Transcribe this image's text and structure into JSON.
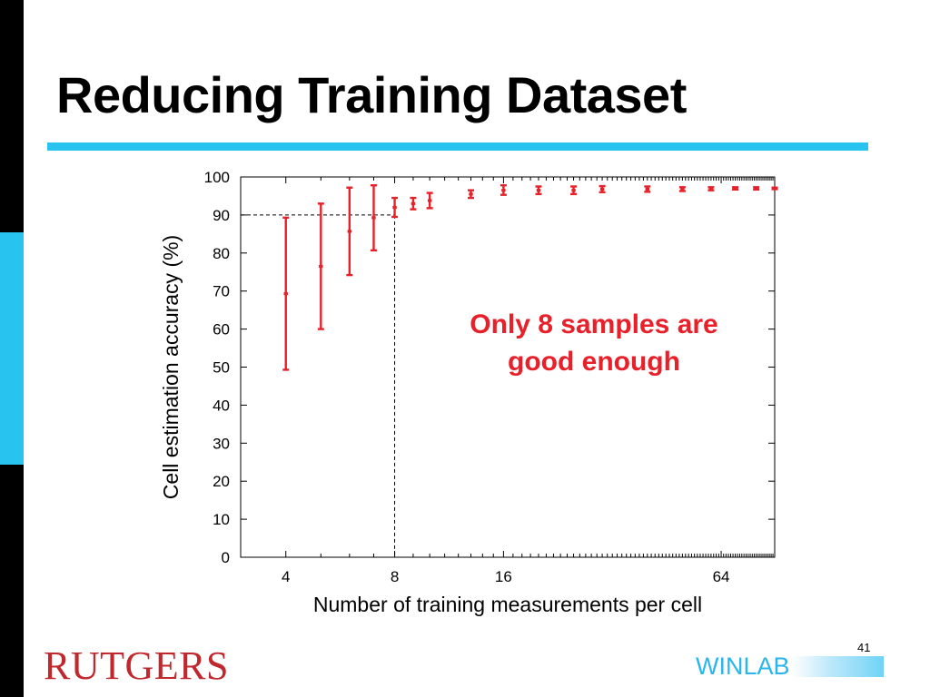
{
  "slide": {
    "title": "Reducing Training Dataset",
    "annotation_line1": "Only 8 samples are",
    "annotation_line2": "good enough",
    "page_number": "41",
    "logo_left": "RUTGERS",
    "logo_right": "WINLAB",
    "colors": {
      "accent": "#29c3f0",
      "side_bar": "#000000",
      "annotation": "#e8202a",
      "rutgers": "#c0282d",
      "winlab": "#29b6ea"
    }
  },
  "chart_data": {
    "type": "scatter",
    "xlabel": "Number of training measurements per cell",
    "ylabel": "Cell estimation accuracy (%)",
    "x_scale": "log2",
    "xlim": [
      3,
      90
    ],
    "ylim": [
      0,
      100
    ],
    "x_ticks": [
      4,
      8,
      16,
      64
    ],
    "y_ticks": [
      0,
      10,
      20,
      30,
      40,
      50,
      60,
      70,
      80,
      90,
      100
    ],
    "grid": false,
    "reference_point": {
      "x": 8,
      "y": 90,
      "style": "dashed"
    },
    "series": [
      {
        "color": "#e8202a",
        "marker": "error-bar",
        "points": [
          {
            "x": 4,
            "y": 69.3,
            "low": 49.3,
            "high": 89.3
          },
          {
            "x": 5,
            "y": 76.5,
            "low": 60.0,
            "high": 93.0
          },
          {
            "x": 6,
            "y": 85.7,
            "low": 74.2,
            "high": 97.2
          },
          {
            "x": 7,
            "y": 89.3,
            "low": 80.7,
            "high": 97.8
          },
          {
            "x": 8,
            "y": 92.0,
            "low": 89.5,
            "high": 94.5
          },
          {
            "x": 9,
            "y": 93.0,
            "low": 91.5,
            "high": 94.5
          },
          {
            "x": 10,
            "y": 93.8,
            "low": 91.8,
            "high": 95.8
          },
          {
            "x": 13,
            "y": 95.5,
            "low": 94.5,
            "high": 96.5
          },
          {
            "x": 16,
            "y": 96.5,
            "low": 95.3,
            "high": 97.8
          },
          {
            "x": 20,
            "y": 96.5,
            "low": 95.5,
            "high": 97.5
          },
          {
            "x": 25,
            "y": 96.5,
            "low": 95.5,
            "high": 97.5
          },
          {
            "x": 30,
            "y": 96.8,
            "low": 96.0,
            "high": 97.6
          },
          {
            "x": 40,
            "y": 96.8,
            "low": 96.1,
            "high": 97.5
          },
          {
            "x": 50,
            "y": 96.8,
            "low": 96.3,
            "high": 97.3
          },
          {
            "x": 60,
            "y": 96.9,
            "low": 96.5,
            "high": 97.3
          },
          {
            "x": 70,
            "y": 97.0,
            "low": 96.7,
            "high": 97.3
          },
          {
            "x": 80,
            "y": 97.0,
            "low": 96.7,
            "high": 97.3
          },
          {
            "x": 90,
            "y": 97.0,
            "low": 96.8,
            "high": 97.2
          }
        ]
      }
    ]
  }
}
